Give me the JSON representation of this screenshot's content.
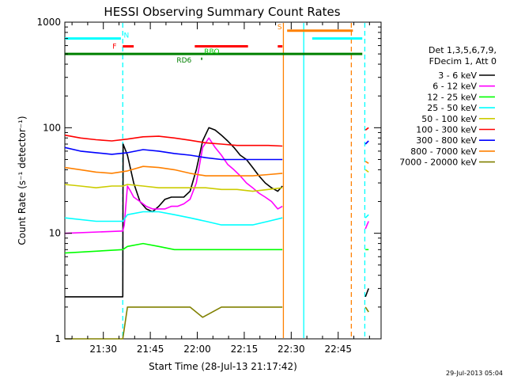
{
  "chart_data": {
    "type": "line",
    "title": "HESSI Observing Summary Count Rates",
    "xlabel": "Start Time (28-Jul-13 21:17:42)",
    "ylabel": "Count Rate (s⁻¹ detector⁻¹)",
    "yscale": "log",
    "ylim": [
      1,
      1000
    ],
    "xlim_min_after_start": [
      0,
      101
    ],
    "x_ticks": [
      {
        "label": "21:30",
        "min": 12.3
      },
      {
        "label": "21:45",
        "min": 27.3
      },
      {
        "label": "22:00",
        "min": 42.3
      },
      {
        "label": "22:15",
        "min": 57.3
      },
      {
        "label": "22:30",
        "min": 72.3
      },
      {
        "label": "22:45",
        "min": 87.3
      }
    ],
    "y_ticks": [
      {
        "label": "1",
        "value": 1
      },
      {
        "label": "10",
        "value": 10
      },
      {
        "label": "100",
        "value": 100
      },
      {
        "label": "1000",
        "value": 1000
      }
    ],
    "legend_title_lines": [
      "Det 1,3,5,6,7,9,",
      "FDecim 1, Att 0"
    ],
    "legend_position": "right",
    "series": [
      {
        "name": "3 - 6 keV",
        "color": "#000000",
        "points": [
          [
            0,
            2.5
          ],
          [
            18.5,
            2.5
          ],
          [
            18.6,
            70
          ],
          [
            20,
            55
          ],
          [
            22,
            30
          ],
          [
            24,
            20
          ],
          [
            26,
            17
          ],
          [
            28,
            16
          ],
          [
            30,
            18
          ],
          [
            32,
            21
          ],
          [
            34,
            22
          ],
          [
            36,
            22
          ],
          [
            38,
            22
          ],
          [
            40,
            25
          ],
          [
            42,
            40
          ],
          [
            44,
            75
          ],
          [
            46,
            100
          ],
          [
            48,
            95
          ],
          [
            50,
            85
          ],
          [
            52,
            75
          ],
          [
            54,
            65
          ],
          [
            56,
            55
          ],
          [
            58,
            50
          ],
          [
            60,
            42
          ],
          [
            62,
            35
          ],
          [
            64,
            30
          ],
          [
            66,
            27
          ],
          [
            68,
            25
          ],
          [
            69.5,
            28
          ],
          [
            69.8,
            null
          ],
          [
            96,
            2.5
          ],
          [
            97,
            3
          ]
        ]
      },
      {
        "name": "6 - 12 keV",
        "color": "#ff00ff",
        "points": [
          [
            0,
            10
          ],
          [
            18.5,
            10.5
          ],
          [
            19,
            12
          ],
          [
            20,
            28
          ],
          [
            21,
            25
          ],
          [
            22,
            22
          ],
          [
            24,
            20
          ],
          [
            26,
            18
          ],
          [
            28,
            17
          ],
          [
            30,
            17
          ],
          [
            32,
            17
          ],
          [
            34,
            18
          ],
          [
            36,
            18
          ],
          [
            38,
            19
          ],
          [
            40,
            21
          ],
          [
            42,
            30
          ],
          [
            44,
            65
          ],
          [
            46,
            80
          ],
          [
            48,
            65
          ],
          [
            50,
            55
          ],
          [
            52,
            45
          ],
          [
            54,
            40
          ],
          [
            56,
            35
          ],
          [
            58,
            30
          ],
          [
            60,
            27
          ],
          [
            62,
            24
          ],
          [
            64,
            22
          ],
          [
            66,
            20
          ],
          [
            68,
            17
          ],
          [
            69.5,
            18
          ],
          [
            69.8,
            null
          ],
          [
            96,
            11
          ],
          [
            97,
            13
          ]
        ]
      },
      {
        "name": "12 - 25 keV",
        "color": "#00ff00",
        "points": [
          [
            0,
            6.5
          ],
          [
            18.5,
            7
          ],
          [
            20,
            7.5
          ],
          [
            25,
            8
          ],
          [
            30,
            7.5
          ],
          [
            35,
            7
          ],
          [
            40,
            7
          ],
          [
            44,
            7
          ],
          [
            50,
            7
          ],
          [
            55,
            7
          ],
          [
            60,
            7
          ],
          [
            65,
            7
          ],
          [
            69.5,
            7
          ],
          [
            69.8,
            null
          ],
          [
            96,
            7
          ],
          [
            97,
            7
          ]
        ]
      },
      {
        "name": "25 - 50 keV",
        "color": "#00ffff",
        "points": [
          [
            0,
            14
          ],
          [
            10,
            13
          ],
          [
            18.5,
            13
          ],
          [
            20,
            15
          ],
          [
            25,
            16
          ],
          [
            30,
            16
          ],
          [
            35,
            15
          ],
          [
            40,
            14
          ],
          [
            45,
            13
          ],
          [
            50,
            12
          ],
          [
            55,
            12
          ],
          [
            60,
            12
          ],
          [
            65,
            13
          ],
          [
            69.5,
            14
          ],
          [
            69.8,
            null
          ],
          [
            96,
            14
          ],
          [
            97,
            15
          ]
        ]
      },
      {
        "name": "50 - 100 keV",
        "color": "#cccc00",
        "points": [
          [
            0,
            29
          ],
          [
            5,
            28
          ],
          [
            10,
            27
          ],
          [
            15,
            28
          ],
          [
            18.5,
            28
          ],
          [
            20,
            29
          ],
          [
            25,
            28
          ],
          [
            30,
            27
          ],
          [
            35,
            27
          ],
          [
            40,
            27
          ],
          [
            45,
            27
          ],
          [
            50,
            26
          ],
          [
            55,
            26
          ],
          [
            60,
            25
          ],
          [
            65,
            26
          ],
          [
            69.5,
            27
          ],
          [
            69.8,
            null
          ],
          [
            96,
            40
          ],
          [
            97,
            38
          ]
        ]
      },
      {
        "name": "100 - 300 keV",
        "color": "#ff0000",
        "points": [
          [
            0,
            85
          ],
          [
            5,
            80
          ],
          [
            10,
            77
          ],
          [
            15,
            75
          ],
          [
            20,
            78
          ],
          [
            25,
            82
          ],
          [
            30,
            83
          ],
          [
            35,
            80
          ],
          [
            40,
            76
          ],
          [
            45,
            72
          ],
          [
            50,
            70
          ],
          [
            55,
            68
          ],
          [
            60,
            68
          ],
          [
            65,
            68
          ],
          [
            69.5,
            67
          ],
          [
            69.8,
            null
          ],
          [
            96,
            95
          ],
          [
            97,
            100
          ]
        ]
      },
      {
        "name": "300 - 800 keV",
        "color": "#0000ff",
        "points": [
          [
            0,
            65
          ],
          [
            5,
            60
          ],
          [
            10,
            58
          ],
          [
            15,
            56
          ],
          [
            20,
            58
          ],
          [
            25,
            62
          ],
          [
            30,
            60
          ],
          [
            35,
            57
          ],
          [
            40,
            55
          ],
          [
            45,
            52
          ],
          [
            50,
            50
          ],
          [
            55,
            50
          ],
          [
            60,
            50
          ],
          [
            65,
            50
          ],
          [
            69.5,
            50
          ],
          [
            69.8,
            null
          ],
          [
            96,
            70
          ],
          [
            97,
            75
          ]
        ]
      },
      {
        "name": "800 - 7000 keV",
        "color": "#ff8000",
        "points": [
          [
            0,
            42
          ],
          [
            5,
            40
          ],
          [
            10,
            38
          ],
          [
            15,
            37
          ],
          [
            20,
            39
          ],
          [
            25,
            43
          ],
          [
            30,
            42
          ],
          [
            35,
            40
          ],
          [
            40,
            37
          ],
          [
            45,
            35
          ],
          [
            50,
            35
          ],
          [
            55,
            35
          ],
          [
            60,
            35
          ],
          [
            65,
            36
          ],
          [
            69.5,
            37
          ],
          [
            69.8,
            null
          ],
          [
            96,
            48
          ],
          [
            97,
            46
          ]
        ]
      },
      {
        "name": "7000 - 20000 keV",
        "color": "#808000",
        "points": [
          [
            0,
            1
          ],
          [
            18.5,
            1
          ],
          [
            20,
            2
          ],
          [
            30,
            2
          ],
          [
            40,
            2
          ],
          [
            44,
            1.6
          ],
          [
            50,
            2
          ],
          [
            60,
            2
          ],
          [
            69.5,
            2
          ],
          [
            69.8,
            null
          ],
          [
            96,
            2
          ],
          [
            97,
            1.8
          ]
        ]
      }
    ],
    "flags": [
      {
        "label": "N",
        "color": "#00ffff",
        "label_min": 18.8,
        "label_value": 750,
        "y_value": 700,
        "segments": [
          [
            0,
            17.9
          ],
          [
            79,
            95
          ]
        ]
      },
      {
        "label": "S",
        "color": "#ff8000",
        "label_min": 67.9,
        "label_value": 900,
        "y_value": 830,
        "segments": [
          [
            71,
            92
          ]
        ]
      },
      {
        "label": "F",
        "color": "#ff0000",
        "label_min": 15.2,
        "label_value": 590,
        "y_value": 590,
        "segments": [
          [
            18.5,
            22
          ],
          [
            41.5,
            58.5
          ],
          [
            68,
            69.5
          ]
        ]
      },
      {
        "label": "RBO",
        "color": "#00cc00",
        "label_min": 44.5,
        "label_value": 530,
        "y_value": 500,
        "segments": [
          [
            0,
            95
          ]
        ],
        "segment_color": "#008000"
      },
      {
        "label": "RD6",
        "color": "#008000",
        "label_min": 35.7,
        "label_value": 435,
        "y_value": 450,
        "segments": [
          [
            43.5,
            43.9
          ]
        ]
      }
    ],
    "vertical_markers": [
      {
        "min": 18.5,
        "color": "#00ffff",
        "style": "dashed"
      },
      {
        "min": 69.8,
        "color": "#ff8000",
        "style": "solid"
      },
      {
        "min": 76.3,
        "color": "#00ffff",
        "style": "solid"
      },
      {
        "min": 91.5,
        "color": "#ff8000",
        "style": "dashed"
      },
      {
        "min": 95.8,
        "color": "#00ffff",
        "style": "dashed"
      }
    ]
  },
  "footer": {
    "timestamp": "29-Jul-2013 05:04"
  }
}
